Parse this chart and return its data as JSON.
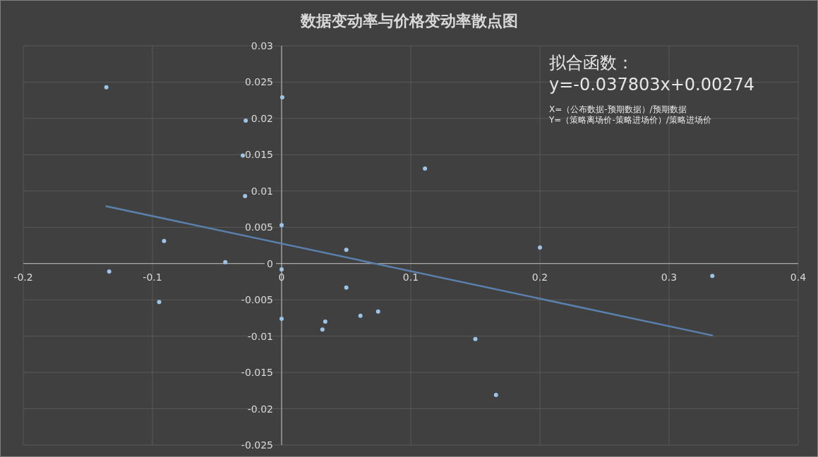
{
  "chart_data": {
    "type": "scatter",
    "title": "数据变动率与价格变动率散点图",
    "series": [
      {
        "type": "scatter",
        "marker": "circle",
        "color": "#9dc3e6",
        "x": [
          -0.1357,
          -0.1335,
          -0.091,
          -0.0948,
          -0.0436,
          -0.03,
          -0.0278,
          -0.0283,
          0.0005,
          0,
          0,
          0,
          0.0501,
          0.0501,
          0.0338,
          0.0316,
          0.061,
          0.0747,
          0.111,
          0.15,
          0.166,
          0.2,
          0.3335
        ],
        "values": [
          0.0243,
          -0.0011,
          0.0031,
          -0.0053,
          0.0002,
          0.0149,
          0.0197,
          0.0093,
          0.0229,
          0.0053,
          -0.0008,
          -0.0076,
          0.0019,
          -0.0033,
          -0.008,
          -0.0091,
          -0.0072,
          -0.0066,
          0.0131,
          -0.0104,
          -0.0181,
          0.0022,
          -0.0017
        ]
      },
      {
        "type": "line",
        "color": "#5a81ad",
        "x": [
          -0.1357,
          0.3335
        ],
        "values": [
          0.0079,
          -0.0099
        ]
      }
    ],
    "xlim": [
      -0.2,
      0.4
    ],
    "ylim": [
      -0.025,
      0.03
    ],
    "xticks": [
      -0.2,
      -0.1,
      0,
      0.1,
      0.2,
      0.3,
      0.4
    ],
    "yticks": [
      -0.025,
      -0.02,
      -0.015,
      -0.01,
      -0.005,
      0,
      0.005,
      0.01,
      0.015,
      0.02,
      0.025,
      0.03
    ],
    "grid": true,
    "annotations": [
      "拟合函数：",
      "y=-0.037803x+0.00274",
      "X=（公布数据-预期数据）/预期数据",
      "Y=（策略离场价-策略进场价）/策略进场价"
    ]
  }
}
